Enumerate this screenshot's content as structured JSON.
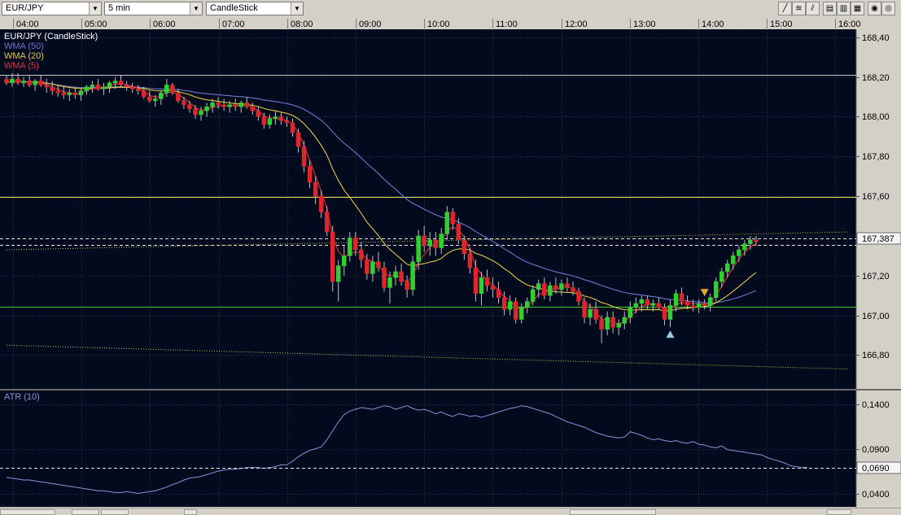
{
  "toolbar": {
    "symbol": "EUR/JPY",
    "interval": "5 min",
    "chart_style": "CandleStick",
    "tool_icons": [
      "line-tool-icon",
      "fibonacci-tool-icon",
      "channel-tool-icon",
      "grid-small-icon",
      "grid-medium-icon",
      "grid-large-icon",
      "zoom-in-icon",
      "zoom-out-icon"
    ]
  },
  "colors": {
    "background": "#020a1e",
    "grid": "#24325a",
    "candle_up": "#2fd12f",
    "candle_down": "#e0252b",
    "wma50": "#6b78c9",
    "wma20": "#e4c93a",
    "wma5": "#e0303a",
    "atr": "#8b93d8",
    "level_yellow": "#e8e85a",
    "level_green": "#42d12f"
  },
  "chart_data": [
    {
      "type": "candlestick",
      "title": "EUR/JPY (CandleStick)",
      "legend": [
        "WMA (50)",
        "WMA (20)",
        "WMA (5)"
      ],
      "x_ticks": [
        "04:00",
        "05:00",
        "06:00",
        "07:00",
        "08:00",
        "09:00",
        "10:00",
        "11:00",
        "12:00",
        "13:00",
        "14:00",
        "15:00",
        "16:00"
      ],
      "x_range": [
        "03:45",
        "16:00"
      ],
      "y_ticks": [
        "168,40",
        "168,20",
        "168,00",
        "167,80",
        "167,60",
        "167,40",
        "167,20",
        "167,00",
        "166,80"
      ],
      "ylim": [
        166.63,
        168.44
      ],
      "price_label": "167,387",
      "current_price": 167.387,
      "horizontal_lines": [
        {
          "price": 168.21,
          "color": "white"
        },
        {
          "price": 167.598,
          "color": "yellow"
        },
        {
          "price": 167.045,
          "color": "green"
        }
      ],
      "dashed_lines": [
        167.387,
        167.355
      ],
      "channel_upper": [
        [
          0,
          167.33
        ],
        [
          147,
          167.42
        ]
      ],
      "channel_lower": [
        [
          0,
          166.85
        ],
        [
          147,
          166.73
        ]
      ],
      "bars": [
        [
          168.19,
          168.21,
          168.16,
          168.17
        ],
        [
          168.17,
          168.22,
          168.15,
          168.19
        ],
        [
          168.19,
          168.22,
          168.16,
          168.17
        ],
        [
          168.17,
          168.2,
          168.15,
          168.18
        ],
        [
          168.18,
          168.21,
          168.15,
          168.16
        ],
        [
          168.16,
          168.19,
          168.13,
          168.18
        ],
        [
          168.18,
          168.21,
          168.15,
          168.16
        ],
        [
          168.16,
          168.19,
          168.12,
          168.15
        ],
        [
          168.15,
          168.18,
          168.11,
          168.13
        ],
        [
          168.13,
          168.16,
          168.1,
          168.12
        ],
        [
          168.12,
          168.15,
          168.09,
          168.11
        ],
        [
          168.11,
          168.14,
          168.08,
          168.12
        ],
        [
          168.12,
          168.15,
          168.09,
          168.11
        ],
        [
          168.11,
          168.14,
          168.08,
          168.13
        ],
        [
          168.13,
          168.16,
          168.11,
          168.15
        ],
        [
          168.15,
          168.18,
          168.12,
          168.16
        ],
        [
          168.16,
          168.19,
          168.13,
          168.14
        ],
        [
          168.14,
          168.17,
          168.11,
          168.15
        ],
        [
          168.15,
          168.18,
          168.12,
          168.17
        ],
        [
          168.17,
          168.2,
          168.14,
          168.18
        ],
        [
          168.18,
          168.21,
          168.15,
          168.16
        ],
        [
          168.16,
          168.18,
          168.13,
          168.15
        ],
        [
          168.15,
          168.17,
          168.12,
          168.14
        ],
        [
          168.14,
          168.16,
          168.11,
          168.13
        ],
        [
          168.13,
          168.15,
          168.09,
          168.1
        ],
        [
          168.1,
          168.13,
          168.07,
          168.08
        ],
        [
          168.08,
          168.11,
          168.05,
          168.09
        ],
        [
          168.09,
          168.13,
          168.06,
          168.12
        ],
        [
          168.12,
          168.19,
          168.1,
          168.16
        ],
        [
          168.16,
          168.17,
          168.11,
          168.12
        ],
        [
          168.12,
          168.14,
          168.07,
          168.08
        ],
        [
          168.08,
          168.1,
          168.04,
          168.06
        ],
        [
          168.06,
          168.08,
          168.02,
          168.04
        ],
        [
          168.04,
          168.06,
          167.99,
          168.01
        ],
        [
          168.01,
          168.05,
          167.98,
          168.03
        ],
        [
          168.03,
          168.07,
          168.0,
          168.05
        ],
        [
          168.05,
          168.09,
          168.02,
          168.07
        ],
        [
          168.07,
          168.1,
          168.04,
          168.06
        ],
        [
          168.06,
          168.09,
          168.03,
          168.05
        ],
        [
          168.05,
          168.08,
          168.02,
          168.06
        ],
        [
          168.06,
          168.09,
          168.03,
          168.05
        ],
        [
          168.05,
          168.08,
          168.02,
          168.07
        ],
        [
          168.07,
          168.1,
          168.04,
          168.05
        ],
        [
          168.05,
          168.07,
          168.01,
          168.03
        ],
        [
          168.03,
          168.05,
          167.98,
          168.0
        ],
        [
          168.0,
          168.02,
          167.94,
          167.96
        ],
        [
          167.96,
          168.01,
          167.94,
          167.99
        ],
        [
          167.99,
          168.03,
          167.96,
          168.0
        ],
        [
          168.0,
          168.02,
          167.96,
          167.98
        ],
        [
          167.98,
          168.0,
          167.95,
          167.97
        ],
        [
          167.97,
          167.99,
          167.9,
          167.92
        ],
        [
          167.92,
          167.94,
          167.82,
          167.85
        ],
        [
          167.85,
          167.88,
          167.72,
          167.75
        ],
        [
          167.75,
          167.78,
          167.64,
          167.67
        ],
        [
          167.67,
          167.7,
          167.56,
          167.6
        ],
        [
          167.6,
          167.63,
          167.49,
          167.52
        ],
        [
          167.52,
          167.55,
          167.4,
          167.42
        ],
        [
          167.42,
          167.45,
          167.12,
          167.17
        ],
        [
          167.17,
          167.28,
          167.07,
          167.25
        ],
        [
          167.25,
          167.35,
          167.2,
          167.3
        ],
        [
          167.3,
          167.42,
          167.27,
          167.39
        ],
        [
          167.39,
          167.42,
          167.3,
          167.33
        ],
        [
          167.33,
          167.37,
          167.24,
          167.28
        ],
        [
          167.28,
          167.31,
          167.18,
          167.21
        ],
        [
          167.21,
          167.3,
          167.17,
          167.27
        ],
        [
          167.27,
          167.32,
          167.22,
          167.24
        ],
        [
          167.24,
          167.27,
          167.12,
          167.14
        ],
        [
          167.14,
          167.22,
          167.06,
          167.19
        ],
        [
          167.19,
          167.25,
          167.15,
          167.22
        ],
        [
          167.22,
          167.26,
          167.15,
          167.17
        ],
        [
          167.17,
          167.2,
          167.09,
          167.13
        ],
        [
          167.13,
          167.3,
          167.1,
          167.27
        ],
        [
          167.27,
          167.43,
          167.23,
          167.4
        ],
        [
          167.4,
          167.45,
          167.32,
          167.35
        ],
        [
          167.35,
          167.42,
          167.3,
          167.38
        ],
        [
          167.38,
          167.42,
          167.3,
          167.34
        ],
        [
          167.34,
          167.44,
          167.31,
          167.41
        ],
        [
          167.41,
          167.55,
          167.38,
          167.52
        ],
        [
          167.52,
          167.54,
          167.43,
          167.46
        ],
        [
          167.46,
          167.49,
          167.36,
          167.38
        ],
        [
          167.38,
          167.4,
          167.28,
          167.31
        ],
        [
          167.31,
          167.34,
          167.21,
          167.24
        ],
        [
          167.24,
          167.28,
          167.07,
          167.11
        ],
        [
          167.11,
          167.22,
          167.05,
          167.19
        ],
        [
          167.19,
          167.23,
          167.12,
          167.15
        ],
        [
          167.15,
          167.19,
          167.09,
          167.13
        ],
        [
          167.13,
          167.17,
          167.06,
          167.09
        ],
        [
          167.09,
          167.12,
          167.0,
          167.03
        ],
        [
          167.03,
          167.1,
          167.0,
          167.07
        ],
        [
          167.07,
          167.09,
          166.96,
          166.98
        ],
        [
          166.98,
          167.06,
          166.96,
          167.04
        ],
        [
          167.04,
          167.09,
          167.01,
          167.07
        ],
        [
          167.07,
          167.15,
          167.05,
          167.13
        ],
        [
          167.13,
          167.18,
          167.09,
          167.16
        ],
        [
          167.16,
          167.19,
          167.08,
          167.1
        ],
        [
          167.1,
          167.17,
          167.07,
          167.15
        ],
        [
          167.15,
          167.19,
          167.11,
          167.13
        ],
        [
          167.13,
          167.18,
          167.1,
          167.16
        ],
        [
          167.16,
          167.19,
          167.12,
          167.14
        ],
        [
          167.14,
          167.17,
          167.1,
          167.12
        ],
        [
          167.12,
          167.14,
          167.05,
          167.07
        ],
        [
          167.07,
          167.09,
          166.96,
          166.99
        ],
        [
          166.99,
          167.06,
          166.95,
          167.03
        ],
        [
          167.03,
          167.07,
          166.96,
          166.98
        ],
        [
          166.98,
          167.0,
          166.86,
          166.93
        ],
        [
          166.93,
          167.02,
          166.9,
          166.99
        ],
        [
          166.99,
          167.02,
          166.91,
          166.94
        ],
        [
          166.94,
          166.98,
          166.9,
          166.96
        ],
        [
          166.96,
          167.02,
          166.93,
          166.99
        ],
        [
          166.99,
          167.07,
          166.96,
          167.04
        ],
        [
          167.04,
          167.09,
          167.01,
          167.06
        ],
        [
          167.06,
          167.1,
          167.02,
          167.08
        ],
        [
          167.08,
          167.1,
          167.03,
          167.05
        ],
        [
          167.05,
          167.08,
          167.02,
          167.06
        ],
        [
          167.06,
          167.09,
          167.03,
          167.04
        ],
        [
          167.04,
          167.06,
          166.95,
          166.98
        ],
        [
          166.98,
          167.08,
          166.94,
          167.05
        ],
        [
          167.05,
          167.13,
          167.02,
          167.11
        ],
        [
          167.11,
          167.14,
          167.05,
          167.07
        ],
        [
          167.07,
          167.1,
          167.03,
          167.05
        ],
        [
          167.05,
          167.08,
          167.02,
          167.04
        ],
        [
          167.04,
          167.08,
          167.01,
          167.06
        ],
        [
          167.06,
          167.08,
          167.03,
          167.05
        ],
        [
          167.05,
          167.11,
          167.02,
          167.09
        ],
        [
          167.09,
          167.19,
          167.07,
          167.17
        ],
        [
          167.17,
          167.24,
          167.14,
          167.22
        ],
        [
          167.22,
          167.28,
          167.19,
          167.26
        ],
        [
          167.26,
          167.32,
          167.23,
          167.3
        ],
        [
          167.3,
          167.35,
          167.27,
          167.33
        ],
        [
          167.33,
          167.38,
          167.3,
          167.36
        ],
        [
          167.36,
          167.4,
          167.33,
          167.38
        ],
        [
          167.38,
          167.4,
          167.35,
          167.37
        ]
      ],
      "markers": [
        {
          "bar": 116,
          "direction": "up",
          "color": "#9ec6e8"
        },
        {
          "bar": 122,
          "direction": "down",
          "color": "#e8a038"
        }
      ]
    },
    {
      "type": "line",
      "title": "ATR (10)",
      "y_ticks": [
        "0,1400",
        "0,0900",
        "0,0400"
      ],
      "ylim": [
        0.025,
        0.155
      ],
      "price_label": "0,0690",
      "current_value": 0.069,
      "values": [
        0.058,
        0.057,
        0.056,
        0.055,
        0.055,
        0.054,
        0.053,
        0.052,
        0.051,
        0.05,
        0.049,
        0.048,
        0.047,
        0.046,
        0.045,
        0.044,
        0.043,
        0.043,
        0.042,
        0.041,
        0.041,
        0.042,
        0.041,
        0.04,
        0.041,
        0.042,
        0.043,
        0.045,
        0.047,
        0.05,
        0.052,
        0.055,
        0.057,
        0.058,
        0.059,
        0.061,
        0.063,
        0.065,
        0.066,
        0.067,
        0.067,
        0.068,
        0.069,
        0.069,
        0.069,
        0.068,
        0.069,
        0.07,
        0.072,
        0.072,
        0.076,
        0.081,
        0.085,
        0.088,
        0.09,
        0.092,
        0.1,
        0.11,
        0.12,
        0.128,
        0.132,
        0.134,
        0.136,
        0.135,
        0.134,
        0.136,
        0.138,
        0.137,
        0.134,
        0.136,
        0.138,
        0.135,
        0.133,
        0.134,
        0.132,
        0.129,
        0.131,
        0.128,
        0.126,
        0.129,
        0.128,
        0.126,
        0.127,
        0.125,
        0.127,
        0.129,
        0.131,
        0.133,
        0.135,
        0.136,
        0.138,
        0.137,
        0.135,
        0.133,
        0.131,
        0.129,
        0.126,
        0.123,
        0.12,
        0.118,
        0.116,
        0.114,
        0.111,
        0.108,
        0.106,
        0.104,
        0.103,
        0.102,
        0.103,
        0.109,
        0.107,
        0.105,
        0.102,
        0.1,
        0.101,
        0.099,
        0.098,
        0.099,
        0.097,
        0.096,
        0.098,
        0.095,
        0.094,
        0.092,
        0.091,
        0.093,
        0.089,
        0.088,
        0.087,
        0.086,
        0.085,
        0.084,
        0.083,
        0.08,
        0.078,
        0.076,
        0.074,
        0.071,
        0.07,
        0.069,
        0.069
      ]
    }
  ]
}
